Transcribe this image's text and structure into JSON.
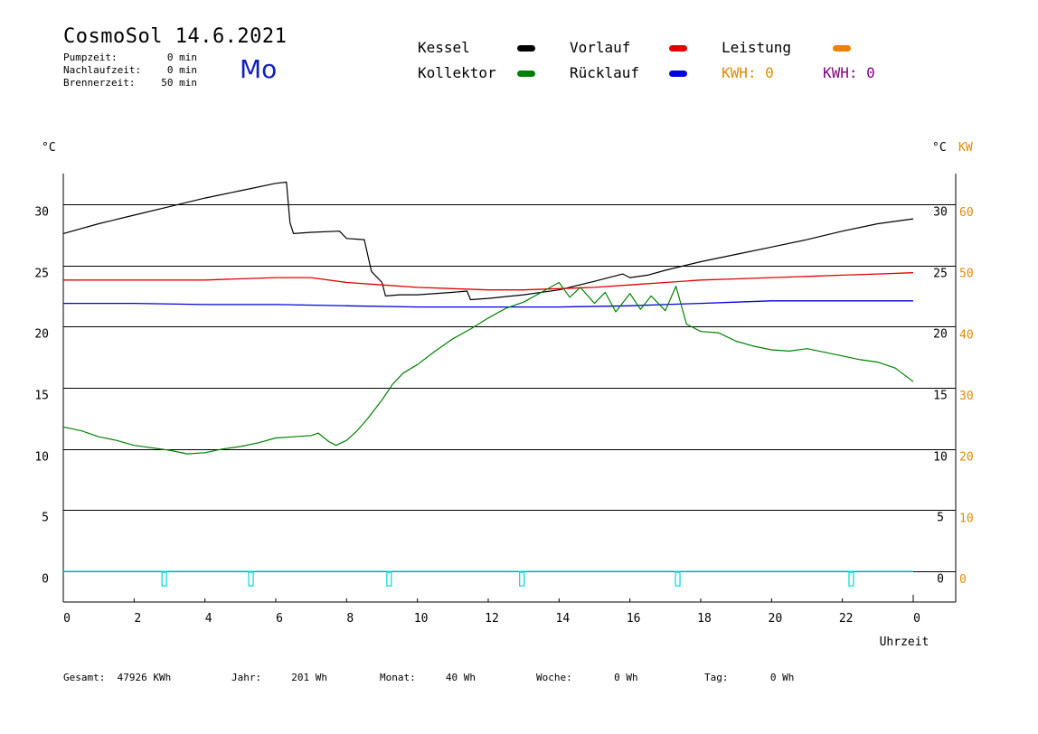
{
  "header": {
    "title": "CosmoSol 14.6.2021",
    "day": "Mo",
    "info": [
      {
        "label": "Pumpzeit:",
        "value": "0 min"
      },
      {
        "label": "Nachlaufzeit:",
        "value": "0 min"
      },
      {
        "label": "Brennerzeit:",
        "value": "50 min"
      }
    ]
  },
  "legend": {
    "kessel": {
      "label": "Kessel",
      "color": "#000000"
    },
    "kollektor": {
      "label": "Kollektor",
      "color": "#008000"
    },
    "vorlauf": {
      "label": "Vorlauf",
      "color": "#e00000"
    },
    "ruecklauf": {
      "label": "Rücklauf",
      "color": "#0000e0"
    },
    "leistung": {
      "label": "Leistung",
      "color": "#f08000"
    },
    "kwh1": {
      "label": "KWH: 0",
      "color": "#e08a00"
    },
    "kwh2": {
      "label": "KWH: 0",
      "color": "#800080"
    }
  },
  "chart_data": {
    "type": "line",
    "xlabel": "Uhrzeit",
    "y_left_unit": "°C",
    "y_right_unit": "°C",
    "y2_unit": "KW",
    "xlim": [
      0,
      24
    ],
    "ylim": [
      -2.5,
      32.5
    ],
    "y2lim": [
      -5,
      65
    ],
    "x_ticks": [
      "0",
      "2",
      "4",
      "6",
      "8",
      "10",
      "12",
      "14",
      "16",
      "18",
      "20",
      "22",
      "0"
    ],
    "y_ticks": [
      "0",
      "5",
      "10",
      "15",
      "20",
      "25",
      "30"
    ],
    "y2_ticks": [
      "0",
      "10",
      "20",
      "30",
      "40",
      "50",
      "60"
    ],
    "grid": true,
    "series": [
      {
        "name": "Kessel",
        "color": "#000000",
        "points": [
          [
            0,
            27.6
          ],
          [
            1,
            28.4
          ],
          [
            2,
            29.1
          ],
          [
            3,
            29.8
          ],
          [
            4,
            30.5
          ],
          [
            5,
            31.1
          ],
          [
            6,
            31.7
          ],
          [
            6.3,
            31.8
          ],
          [
            6.4,
            28.5
          ],
          [
            6.5,
            27.6
          ],
          [
            7,
            27.7
          ],
          [
            7.8,
            27.8
          ],
          [
            8.0,
            27.2
          ],
          [
            8.5,
            27.1
          ],
          [
            8.7,
            24.5
          ],
          [
            9.0,
            23.6
          ],
          [
            9.1,
            22.5
          ],
          [
            9.5,
            22.6
          ],
          [
            10,
            22.6
          ],
          [
            11,
            22.8
          ],
          [
            11.4,
            22.9
          ],
          [
            11.5,
            22.2
          ],
          [
            12,
            22.3
          ],
          [
            13,
            22.6
          ],
          [
            14,
            23.0
          ],
          [
            15,
            23.7
          ],
          [
            15.8,
            24.3
          ],
          [
            16,
            24.0
          ],
          [
            16.5,
            24.2
          ],
          [
            17,
            24.6
          ],
          [
            18,
            25.3
          ],
          [
            19,
            25.9
          ],
          [
            20,
            26.5
          ],
          [
            21,
            27.1
          ],
          [
            22,
            27.8
          ],
          [
            23,
            28.4
          ],
          [
            24,
            28.8
          ]
        ]
      },
      {
        "name": "Vorlauf",
        "color": "#e00000",
        "points": [
          [
            0,
            23.8
          ],
          [
            2,
            23.8
          ],
          [
            4,
            23.8
          ],
          [
            6,
            24.0
          ],
          [
            7,
            24.0
          ],
          [
            8,
            23.6
          ],
          [
            9,
            23.4
          ],
          [
            10,
            23.2
          ],
          [
            11,
            23.1
          ],
          [
            12,
            23.0
          ],
          [
            13,
            23.0
          ],
          [
            14,
            23.1
          ],
          [
            15,
            23.2
          ],
          [
            16,
            23.4
          ],
          [
            17,
            23.6
          ],
          [
            18,
            23.8
          ],
          [
            19,
            23.9
          ],
          [
            20,
            24.0
          ],
          [
            21,
            24.1
          ],
          [
            22,
            24.2
          ],
          [
            23,
            24.3
          ],
          [
            24,
            24.4
          ]
        ]
      },
      {
        "name": "Rücklauf",
        "color": "#0000e0",
        "points": [
          [
            0,
            21.9
          ],
          [
            2,
            21.9
          ],
          [
            4,
            21.8
          ],
          [
            6,
            21.8
          ],
          [
            8,
            21.7
          ],
          [
            10,
            21.6
          ],
          [
            12,
            21.6
          ],
          [
            14,
            21.6
          ],
          [
            16,
            21.7
          ],
          [
            17,
            21.8
          ],
          [
            18,
            21.9
          ],
          [
            19,
            22.0
          ],
          [
            20,
            22.1
          ],
          [
            22,
            22.1
          ],
          [
            24,
            22.1
          ]
        ]
      },
      {
        "name": "Kollektor",
        "color": "#008000",
        "points": [
          [
            0,
            11.8
          ],
          [
            0.5,
            11.5
          ],
          [
            1,
            11.0
          ],
          [
            1.5,
            10.7
          ],
          [
            2,
            10.3
          ],
          [
            3,
            9.9
          ],
          [
            3.5,
            9.6
          ],
          [
            4,
            9.7
          ],
          [
            4.5,
            10.0
          ],
          [
            5,
            10.2
          ],
          [
            5.5,
            10.5
          ],
          [
            6,
            10.9
          ],
          [
            6.5,
            11.0
          ],
          [
            7,
            11.1
          ],
          [
            7.2,
            11.3
          ],
          [
            7.5,
            10.6
          ],
          [
            7.7,
            10.3
          ],
          [
            8,
            10.7
          ],
          [
            8.3,
            11.5
          ],
          [
            8.6,
            12.5
          ],
          [
            9,
            14.0
          ],
          [
            9.3,
            15.3
          ],
          [
            9.6,
            16.2
          ],
          [
            10,
            16.9
          ],
          [
            10.5,
            18.0
          ],
          [
            11,
            19.0
          ],
          [
            11.5,
            19.8
          ],
          [
            12,
            20.7
          ],
          [
            12.5,
            21.5
          ],
          [
            13,
            22.0
          ],
          [
            13.5,
            22.8
          ],
          [
            14,
            23.6
          ],
          [
            14.3,
            22.4
          ],
          [
            14.6,
            23.2
          ],
          [
            15,
            21.9
          ],
          [
            15.3,
            22.8
          ],
          [
            15.6,
            21.2
          ],
          [
            16,
            22.7
          ],
          [
            16.3,
            21.4
          ],
          [
            16.6,
            22.5
          ],
          [
            17,
            21.3
          ],
          [
            17.3,
            23.3
          ],
          [
            17.6,
            20.2
          ],
          [
            18,
            19.6
          ],
          [
            18.5,
            19.5
          ],
          [
            19,
            18.8
          ],
          [
            19.5,
            18.4
          ],
          [
            20,
            18.1
          ],
          [
            20.5,
            18.0
          ],
          [
            21,
            18.2
          ],
          [
            21.5,
            17.9
          ],
          [
            22,
            17.6
          ],
          [
            22.5,
            17.3
          ],
          [
            23,
            17.1
          ],
          [
            23.5,
            16.6
          ],
          [
            24,
            15.5
          ]
        ]
      },
      {
        "name": "Leistung",
        "color": "#00d8d8",
        "points": [
          [
            0,
            0
          ],
          [
            24,
            0
          ]
        ],
        "markers_x": [
          2.85,
          5.3,
          9.2,
          12.95,
          17.35,
          22.25
        ]
      }
    ]
  },
  "footer": [
    {
      "label": "Gesamt:",
      "value": "47926 KWh"
    },
    {
      "label": "Jahr:",
      "value": "201 Wh"
    },
    {
      "label": "Monat:",
      "value": "40 Wh"
    },
    {
      "label": "Woche:",
      "value": "0 Wh"
    },
    {
      "label": "Tag:",
      "value": "0 Wh"
    }
  ]
}
